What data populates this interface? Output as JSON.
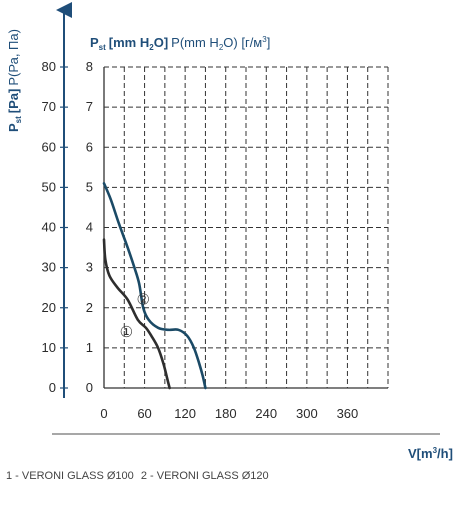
{
  "chart_data": {
    "type": "line",
    "y_title_left": {
      "prefix": "P",
      "sub": "st",
      "unit": "[Pa]",
      "alt": "P(Ра, Па)"
    },
    "y_title_right": {
      "prefix": "P",
      "sub": "st",
      "unit_a": "[mm H",
      "unit_b": "O]",
      "alt_a": "P(mm H",
      "alt_b": "O) [г/м",
      "alt_c": "]"
    },
    "x_title": {
      "v": "V[m",
      "tail": "/h]"
    },
    "y_pa_ticks": [
      "0",
      "10",
      "20",
      "30",
      "40",
      "50",
      "60",
      "70",
      "80"
    ],
    "y_mm_ticks": [
      "0",
      "1",
      "2",
      "3",
      "4",
      "5",
      "6",
      "7",
      "8"
    ],
    "x_ticks": [
      "0",
      "60",
      "120",
      "180",
      "240",
      "300",
      "360"
    ],
    "xlim": [
      0,
      420
    ],
    "ylim_pa": [
      0,
      80
    ],
    "grid": true,
    "series": [
      {
        "name": "1 - VERONI GLASS Ø100",
        "marker": "①",
        "color": "#2e2e2e",
        "points": [
          [
            0,
            37
          ],
          [
            2,
            32
          ],
          [
            8,
            28
          ],
          [
            20,
            25
          ],
          [
            35,
            22
          ],
          [
            50,
            17
          ],
          [
            62,
            15
          ],
          [
            70,
            13
          ],
          [
            80,
            10
          ],
          [
            88,
            6
          ],
          [
            94,
            2
          ],
          [
            97,
            0
          ]
        ]
      },
      {
        "name": "2 - VERONI GLASS Ø120",
        "marker": "②",
        "color": "#1b4a66",
        "points": [
          [
            0,
            51
          ],
          [
            10,
            47
          ],
          [
            22,
            41
          ],
          [
            35,
            35
          ],
          [
            45,
            30
          ],
          [
            52,
            26
          ],
          [
            58,
            20
          ],
          [
            66,
            17
          ],
          [
            80,
            15
          ],
          [
            95,
            14.5
          ],
          [
            110,
            14.5
          ],
          [
            123,
            13
          ],
          [
            133,
            10
          ],
          [
            141,
            6
          ],
          [
            146,
            3
          ],
          [
            150,
            0
          ]
        ]
      }
    ]
  },
  "legend_text": [
    "1 - VERONI GLASS Ø100",
    "2 - VERONI GLASS Ø120"
  ]
}
